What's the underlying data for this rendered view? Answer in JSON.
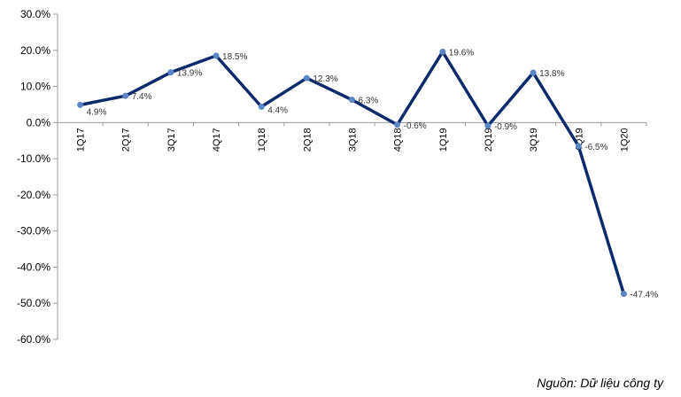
{
  "chart_data": {
    "type": "line",
    "categories": [
      "1Q17",
      "2Q17",
      "3Q17",
      "4Q17",
      "1Q18",
      "2Q18",
      "3Q18",
      "4Q18",
      "1Q19",
      "2Q19",
      "3Q19",
      "4Q19",
      "1Q20"
    ],
    "series": [
      {
        "values": [
          4.9,
          7.4,
          13.9,
          18.5,
          4.4,
          12.3,
          6.3,
          -0.6,
          19.6,
          -0.9,
          13.8,
          -6.5,
          -47.4
        ]
      }
    ],
    "data_labels": [
      "4.9%",
      "7.4%",
      "13.9%",
      "18.5%",
      "4.4%",
      "12.3%",
      "6.3%",
      "-0.6%",
      "19.6%",
      "-0.9%",
      "13.8%",
      "-6.5%",
      "-47.4%"
    ],
    "ylim": [
      -60,
      30
    ],
    "yticks": [
      30,
      20,
      10,
      0,
      -10,
      -20,
      -30,
      -40,
      -50,
      -60
    ],
    "ytick_labels": [
      "30.0%",
      "20.0%",
      "10.0%",
      "0.0%",
      "-10.0%",
      "-20.0%",
      "-30.0%",
      "-40.0%",
      "-50.0%",
      "-60.0%"
    ],
    "line_color": "#0d2a6b",
    "marker_color": "#5b86c5",
    "grid": false
  },
  "source": "Nguồn: Dữ liệu công ty"
}
